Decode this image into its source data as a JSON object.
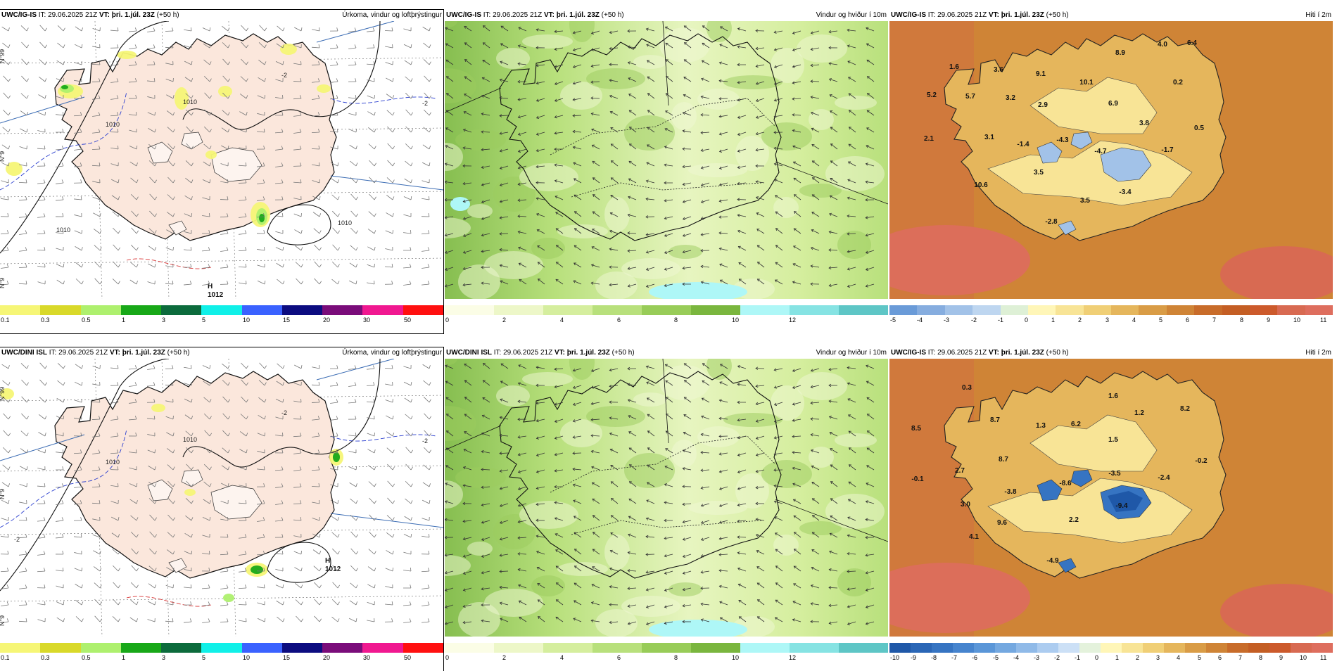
{
  "panels": [
    {
      "row": 0,
      "col": 0,
      "type": "precip",
      "model": "UWC/IG-IS",
      "it_label": "IT:",
      "it": "29.06.2025 21Z",
      "vt_label": "VT:",
      "vt": "þri. 1.júl. 23Z",
      "lead": "(+50 h)",
      "label": "Úrkoma, vindur og loftþrýstingur",
      "highs": [
        {
          "text": "H"
        },
        {
          "text": "1012"
        }
      ],
      "isobars": [
        "1010",
        "1010",
        "1010",
        "1010"
      ],
      "isotherms": [
        "-2",
        "-2"
      ]
    },
    {
      "row": 0,
      "col": 1,
      "type": "wind",
      "model": "UWC/IG-IS",
      "it_label": "IT:",
      "it": "29.06.2025 21Z",
      "vt_label": "VT:",
      "vt": "þri. 1.júl. 23Z",
      "lead": "(+50 h)",
      "label": "Vindur og hviður í 10m"
    },
    {
      "row": 0,
      "col": 2,
      "type": "temp",
      "model": "UWC/IG-IS",
      "it_label": "IT:",
      "it": "29.06.2025 21Z",
      "vt_label": "VT:",
      "vt": "þri. 1.júl. 23Z",
      "lead": "(+50 h)",
      "label": "Hiti í 2m",
      "temps": [
        "1.6",
        "3.6",
        "9.1",
        "10.1",
        "8.9",
        "4.0",
        "6.4",
        "5.2",
        "5.7",
        "3.2",
        "2.9",
        "6.9",
        "0.2",
        "3.8",
        "0.5",
        "2.1",
        "3.1",
        "-1.4",
        "-4.3",
        "-4.7",
        "-1.7",
        "3.5",
        "10.6",
        "3.5",
        "-3.4",
        "-2.8"
      ]
    },
    {
      "row": 1,
      "col": 0,
      "type": "precip",
      "model": "UWC/DINI ISL",
      "it_label": "IT:",
      "it": "29.06.2025 21Z",
      "vt_label": "VT:",
      "vt": "þri. 1.júl. 23Z",
      "lead": "(+50 h)",
      "label": "Úrkoma, vindur og loftþrýstingur",
      "highs": [
        {
          "text": "H"
        },
        {
          "text": "1012"
        }
      ],
      "isobars": [
        "1010",
        "1010"
      ],
      "isotherms": [
        "-2",
        "-2",
        "-2"
      ]
    },
    {
      "row": 1,
      "col": 1,
      "type": "wind",
      "model": "UWC/DINI ISL",
      "it_label": "IT:",
      "it": "29.06.2025 21Z",
      "vt_label": "VT:",
      "vt": "þri. 1.júl. 23Z",
      "lead": "(+50 h)",
      "label": "Vindur og hviður í 10m"
    },
    {
      "row": 1,
      "col": 2,
      "type": "temp",
      "model": "UWC/IG-IS",
      "it_label": "IT:",
      "it": "29.06.2025 21Z",
      "vt_label": "VT:",
      "vt": "þri. 1.júl. 23Z",
      "lead": "(+50 h)",
      "label": "Hiti í 2m",
      "temps": [
        "0.3",
        "1.6",
        "8.7",
        "1.3",
        "6.2",
        "1.2",
        "8.2",
        "8.5",
        "8.7",
        "1.5",
        "-0.2",
        "2.7",
        "-0.1",
        "-3.5",
        "-2.4",
        "-3.8",
        "-8.6",
        "3.0",
        "-9.4",
        "9.6",
        "2.2",
        "4.1",
        "-4.9"
      ]
    }
  ],
  "legends": {
    "precip": {
      "colors": [
        "#f6f676",
        "#d9d92a",
        "#aef06e",
        "#18a818",
        "#0c6b3c",
        "#10f0e8",
        "#3a62ff",
        "#0c0c80",
        "#7a0c7a",
        "#f01890",
        "#ff1010"
      ],
      "ticks": [
        "0.1",
        "0.3",
        "0.5",
        "1",
        "3",
        "5",
        "10",
        "15",
        "20",
        "30",
        "50"
      ]
    },
    "wind": {
      "colors": [
        "#fbfde6",
        "#edf7c8",
        "#d5ee9e",
        "#b8e07c",
        "#98cc58",
        "#7ab63e",
        "#aef7f7",
        "#86e3e3",
        "#5ec6c6"
      ],
      "ticks": [
        "0",
        "2",
        "4",
        "6",
        "8",
        "10",
        "12"
      ]
    },
    "temp_top": {
      "colors": [
        "#6a9bd8",
        "#86addf",
        "#a2c2e8",
        "#bed6f0",
        "#def0d6",
        "#fff6b8",
        "#f8e496",
        "#f0cf76",
        "#e5b65c",
        "#d99c46",
        "#cf8436",
        "#c86c2a",
        "#c45e24",
        "#cc5a2c",
        "#d86a52",
        "#de6e5e"
      ],
      "ticks": [
        "-5",
        "-4",
        "-3",
        "-2",
        "-1",
        "0",
        "1",
        "2",
        "3",
        "4",
        "5",
        "6",
        "7",
        "8",
        "9",
        "10",
        "11"
      ]
    },
    "temp_bottom": {
      "colors": [
        "#1f58a8",
        "#2a66b6",
        "#3674c2",
        "#4684ce",
        "#5a96d8",
        "#74a8e0",
        "#90bae8",
        "#acccf0",
        "#cce0f6",
        "#e4f2dc",
        "#fff6b8",
        "#f8e496",
        "#f0cf76",
        "#e5b65c",
        "#d99c46",
        "#cf8436",
        "#c86c2a",
        "#c45e24",
        "#cc5a2c",
        "#d86a52",
        "#de6e5e"
      ],
      "ticks": [
        "-10",
        "-9",
        "-8",
        "-7",
        "-6",
        "-5",
        "-4",
        "-3",
        "-2",
        "-1",
        "0",
        "1",
        "2",
        "3",
        "4",
        "5",
        "6",
        "7",
        "8",
        "9",
        "10",
        "11"
      ]
    }
  },
  "axis": {
    "lat_top": "N°99",
    "lat_mid": "N°9",
    "lat_low": "N°9"
  }
}
